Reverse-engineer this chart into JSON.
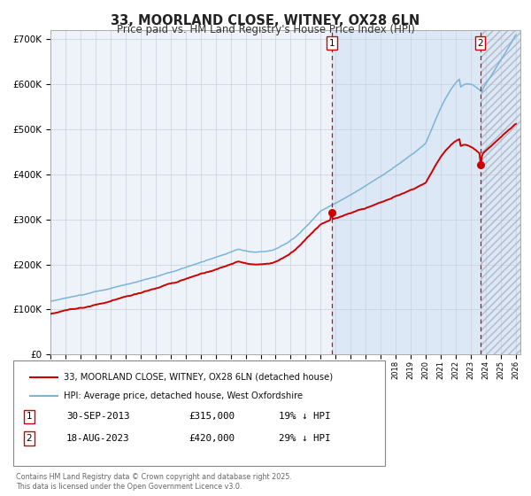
{
  "title": "33, MOORLAND CLOSE, WITNEY, OX28 6LN",
  "subtitle": "Price paid vs. HM Land Registry's House Price Index (HPI)",
  "ylim": [
    0,
    720000
  ],
  "yticks": [
    0,
    100000,
    200000,
    300000,
    400000,
    500000,
    600000,
    700000
  ],
  "ytick_labels": [
    "£0",
    "£100K",
    "£200K",
    "£300K",
    "£400K",
    "£500K",
    "£600K",
    "£700K"
  ],
  "hpi_color": "#7ab4d8",
  "price_color": "#cc0000",
  "bg_color": "#ffffff",
  "plot_bg_color": "#eef3fa",
  "shaded_color": "#dce8f5",
  "grid_color": "#c8d0dc",
  "purchase1_year": 2013.75,
  "purchase1_price": 315000,
  "purchase2_year": 2023.62,
  "purchase2_price": 420000,
  "legend_red_label": "33, MOORLAND CLOSE, WITNEY, OX28 6LN (detached house)",
  "legend_blue_label": "HPI: Average price, detached house, West Oxfordshire",
  "ann1_date": "30-SEP-2013",
  "ann1_price": "£315,000",
  "ann1_hpi": "19% ↓ HPI",
  "ann2_date": "18-AUG-2023",
  "ann2_price": "£420,000",
  "ann2_hpi": "29% ↓ HPI",
  "footnote": "Contains HM Land Registry data © Crown copyright and database right 2025.\nThis data is licensed under the Open Government Licence v3.0."
}
